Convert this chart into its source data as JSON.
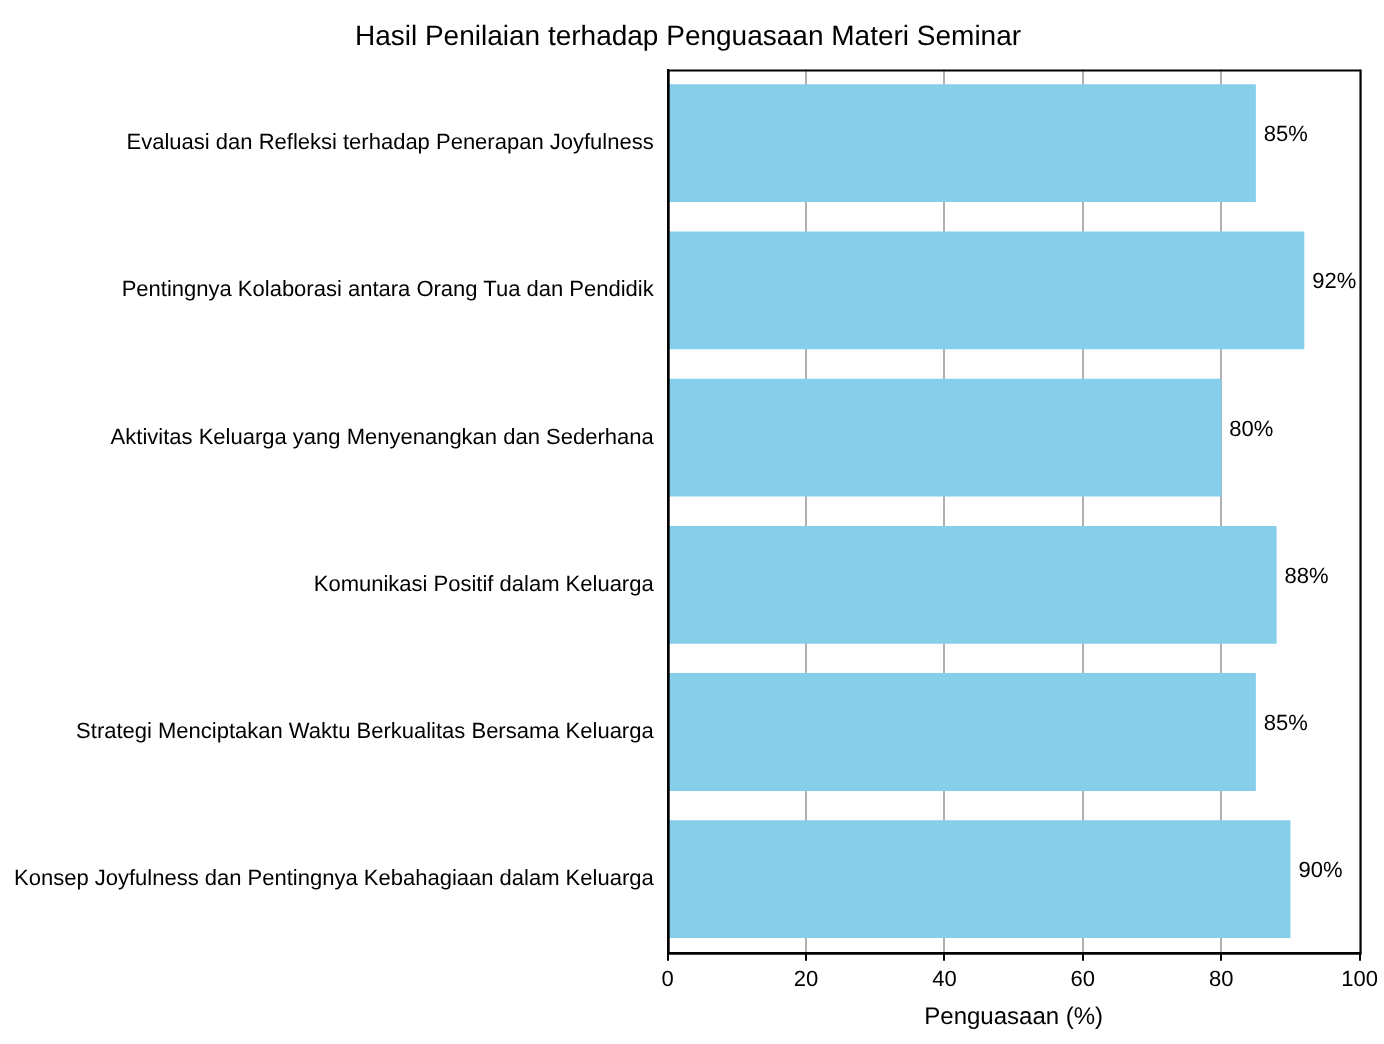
{
  "chart_data": {
    "type": "bar",
    "orientation": "horizontal",
    "title": "Hasil Penilaian terhadap Penguasaan Materi Seminar",
    "xlabel": "Penguasaan (%)",
    "categories": [
      "Evaluasi dan Refleksi terhadap Penerapan Joyfulness",
      "Pentingnya Kolaborasi antara Orang Tua dan Pendidik",
      "Aktivitas Keluarga yang Menyenangkan dan Sederhana",
      "Komunikasi Positif dalam Keluarga",
      "Strategi Menciptakan Waktu Berkualitas Bersama Keluarga",
      "Konsep Joyfulness dan Pentingnya Kebahagiaan dalam Keluarga"
    ],
    "values": [
      85,
      92,
      80,
      88,
      85,
      90
    ],
    "value_labels": [
      "85%",
      "92%",
      "80%",
      "88%",
      "85%",
      "90%"
    ],
    "color": "#87ceeb",
    "xlim": [
      0,
      100
    ],
    "xticks": [
      0,
      20,
      40,
      60,
      80,
      100
    ],
    "grid": "x",
    "legend": false
  }
}
